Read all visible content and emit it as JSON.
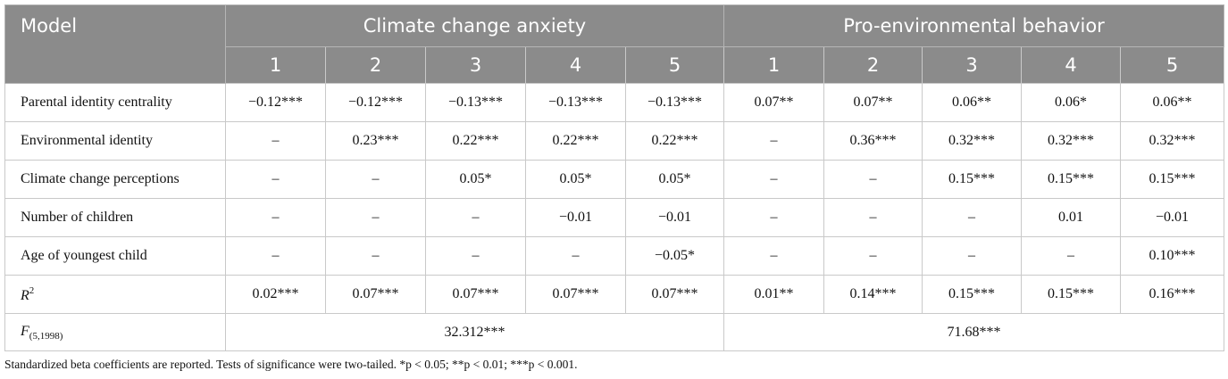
{
  "header": {
    "model_label": "Model",
    "group1": "Climate change anxiety",
    "group2": "Pro-environmental behavior",
    "model_numbers": [
      "1",
      "2",
      "3",
      "4",
      "5",
      "1",
      "2",
      "3",
      "4",
      "5"
    ]
  },
  "rows": [
    {
      "label": "Parental identity centrality",
      "values": [
        "−0.12***",
        "−0.12***",
        "−0.13***",
        "−0.13***",
        "−0.13***",
        "0.07**",
        "0.07**",
        "0.06**",
        "0.06*",
        "0.06**"
      ]
    },
    {
      "label": "Environmental identity",
      "values": [
        "–",
        "0.23***",
        "0.22***",
        "0.22***",
        "0.22***",
        "–",
        "0.36***",
        "0.32***",
        "0.32***",
        "0.32***"
      ]
    },
    {
      "label": "Climate change perceptions",
      "values": [
        "–",
        "–",
        "0.05*",
        "0.05*",
        "0.05*",
        "–",
        "–",
        "0.15***",
        "0.15***",
        "0.15***"
      ]
    },
    {
      "label": "Number of children",
      "values": [
        "–",
        "–",
        "–",
        "−0.01",
        "−0.01",
        "–",
        "–",
        "–",
        "0.01",
        "−0.01"
      ]
    },
    {
      "label": "Age of youngest child",
      "values": [
        "–",
        "–",
        "–",
        "–",
        "−0.05*",
        "–",
        "–",
        "–",
        "–",
        "0.10***"
      ]
    }
  ],
  "r2_row": {
    "label_main": "R",
    "label_sup": "2",
    "values": [
      "0.02***",
      "0.07***",
      "0.07***",
      "0.07***",
      "0.07***",
      "0.01**",
      "0.14***",
      "0.15***",
      "0.15***",
      "0.16***"
    ]
  },
  "f_row": {
    "label_main": "F",
    "label_sub": "(5,1998)",
    "value1": "32.312***",
    "value2": "71.68***"
  },
  "note": "Standardized beta coefficients are reported. Tests of significance were two-tailed. *p < 0.05; **p < 0.01; ***p < 0.001."
}
